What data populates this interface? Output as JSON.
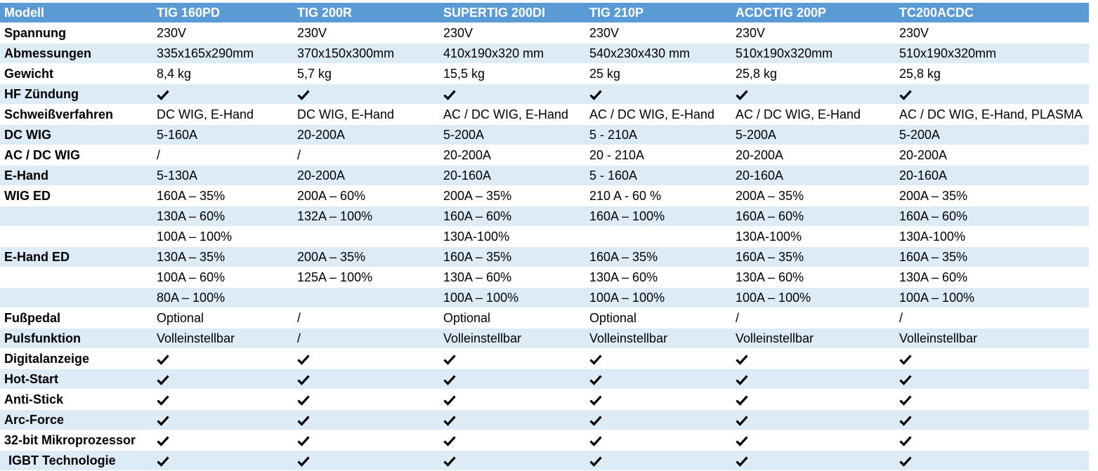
{
  "header": {
    "label": "Modell",
    "models": [
      "TIG 160PD",
      "TIG 200R",
      "SUPERTIG 200DI",
      "TIG 210P",
      "ACDCTIG 200P",
      "TC200ACDC"
    ]
  },
  "rows": [
    {
      "label": "Spannung",
      "cells": [
        "230V",
        "230V",
        "230V",
        "230V",
        "230V",
        "230V"
      ]
    },
    {
      "label": "Abmessungen",
      "cells": [
        "335x165x290mm",
        "370x150x300mm",
        "410x190x320 mm",
        "540x230x430 mm",
        "510x190x320mm",
        "510x190x320mm"
      ]
    },
    {
      "label": "Gewicht",
      "cells": [
        "8,4 kg",
        "5,7 kg",
        "15,5 kg",
        "25 kg",
        "25,8 kg",
        "25,8 kg"
      ]
    },
    {
      "label": "HF Zündung",
      "check": true
    },
    {
      "label": "Schweißverfahren",
      "cells": [
        "DC WIG, E-Hand",
        "DC WIG, E-Hand",
        "AC / DC WIG, E-Hand",
        "AC / DC WIG, E-Hand",
        "AC / DC WIG, E-Hand",
        "AC / DC WIG, E-Hand, PLASMA"
      ]
    },
    {
      "label": "DC WIG",
      "cells": [
        "5-160A",
        "20-200A",
        "5-200A",
        "5 - 210A",
        "5-200A",
        "5-200A"
      ]
    },
    {
      "label": "AC / DC WIG",
      "cells": [
        "/",
        "/",
        "20-200A",
        "20 - 210A",
        "20-200A",
        "20-200A"
      ]
    },
    {
      "label": "E-Hand",
      "cells": [
        "5-130A",
        "20-200A",
        "20-160A",
        "5 - 160A",
        "20-160A",
        "20-160A"
      ]
    },
    {
      "label": "WIG ED",
      "cells": [
        "160A – 35%",
        "200A – 60%",
        "200A – 35%",
        "210 A - 60 %",
        "200A – 35%",
        "200A – 35%"
      ]
    },
    {
      "label": "",
      "cells": [
        "130A – 60%",
        "132A – 100%",
        "160A – 60%",
        "160A – 100%",
        "160A – 60%",
        "160A – 60%"
      ]
    },
    {
      "label": "",
      "cells": [
        "100A – 100%",
        "",
        "130A-100%",
        "",
        "130A-100%",
        "130A-100%"
      ]
    },
    {
      "label": "E-Hand ED",
      "cells": [
        "130A – 35%",
        "200A – 35%",
        "160A – 35%",
        "160A – 35%",
        "160A – 35%",
        "160A – 35%"
      ]
    },
    {
      "label": "",
      "cells": [
        "100A – 60%",
        "125A – 100%",
        "130A – 60%",
        "130A – 60%",
        "130A – 60%",
        "130A – 60%"
      ]
    },
    {
      "label": "",
      "cells": [
        "80A – 100%",
        "",
        "100A – 100%",
        "100A – 100%",
        "100A – 100%",
        "100A – 100%"
      ]
    },
    {
      "label": "Fußpedal",
      "cells": [
        "Optional",
        "/",
        "Optional",
        "Optional",
        "/",
        "/"
      ]
    },
    {
      "label": "Pulsfunktion",
      "cells": [
        "Volleinstellbar",
        "/",
        "Volleinstellbar",
        "Volleinstellbar",
        "Volleinstellbar",
        "Volleinstellbar"
      ]
    },
    {
      "label": "Digitalanzeige",
      "check": true
    },
    {
      "label": "Hot-Start",
      "check": true
    },
    {
      "label": "Anti-Stick",
      "check": true
    },
    {
      "label": "Arc-Force",
      "check": true
    },
    {
      "label": "32-bit Mikroprozessor",
      "check": true
    },
    {
      "label": "IGBT Technologie",
      "check": true,
      "indent": true
    }
  ],
  "icons": {
    "check": "checkmark-icon"
  },
  "colors": {
    "header_bg": "#5b9bd5",
    "header_text": "#ffffff",
    "band_bg": "#ddebf7",
    "plain_bg": "#ffffff"
  }
}
